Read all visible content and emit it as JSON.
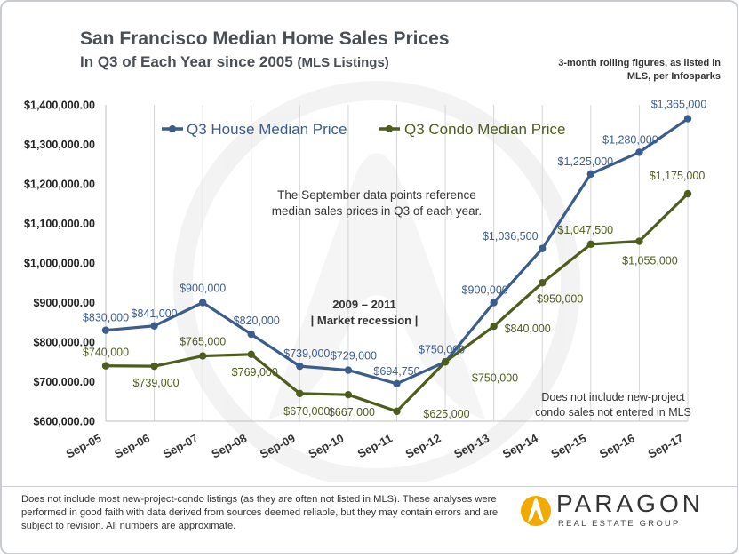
{
  "header": {
    "title": "San Francisco Median Home Sales Prices",
    "subtitle_main": "In Q3 of Each Year since 2005",
    "subtitle_paren": "(MLS Listings)",
    "note_top": "3-month rolling figures, as listed in MLS, per Infosparks"
  },
  "chart_data": {
    "type": "line",
    "categories": [
      "Sep-05",
      "Sep-06",
      "Sep-07",
      "Sep-08",
      "Sep-09",
      "Sep-10",
      "Sep-11",
      "Sep-12",
      "Sep-13",
      "Sep-14",
      "Sep-15",
      "Sep-16",
      "Sep-17"
    ],
    "series": [
      {
        "name": "Q3 House Median Price",
        "color": "#3a5d8c",
        "values": [
          830000,
          841000,
          900000,
          820000,
          739000,
          729000,
          694750,
          750000,
          900000,
          1036500,
          1225000,
          1280000,
          1365000
        ],
        "labels": [
          "$830,000",
          "$841,000",
          "$900,000",
          "$820,000",
          "$739,000",
          "$729,000",
          "$694,750",
          "$750,000",
          "$900,000",
          "$1,036,500",
          "$1,225,000",
          "$1,280,000",
          "$1,365,000"
        ]
      },
      {
        "name": "Q3 Condo Median Price",
        "color": "#4e5d1e",
        "values": [
          740000,
          739000,
          765000,
          769000,
          670000,
          667000,
          625000,
          750000,
          840000,
          950000,
          1047500,
          1055000,
          1175000
        ],
        "labels": [
          "$740,000",
          "$739,000",
          "$765,000",
          "$769,000",
          "$670,000",
          "$667,000",
          "$625,000",
          "$750,000",
          "$840,000",
          "$950,000",
          "$1,047,500",
          "$1,055,000",
          "$1,175,000"
        ]
      }
    ],
    "ylim": [
      600000,
      1400000
    ],
    "yticks": [
      600000,
      700000,
      800000,
      900000,
      1000000,
      1100000,
      1200000,
      1300000,
      1400000
    ],
    "ytick_labels": [
      "$600,000.00",
      "$700,000.00",
      "$800,000.00",
      "$900,000.00",
      "$1,000,000.00",
      "$1,100,000.00",
      "$1,200,000.00",
      "$1,300,000.00",
      "$1,400,000.00"
    ],
    "grid": "vertical",
    "annotations": {
      "center_line1": "The September data points reference",
      "center_line2": "median sales prices in Q3 of each year.",
      "recession_line1": "2009 – 2011",
      "recession_line2": "| Market recession |",
      "condo_note_line1": "Does not include new-project",
      "condo_note_line2": "condo sales not entered in MLS"
    }
  },
  "footer": {
    "disclaimer": "Does not include most new-project-condo listings (as they are often not listed in MLS). These analyses were performed in good faith with data derived from sources deemed reliable, but they may contain errors and are subject to revision. All numbers are approximate.",
    "logo_name": "PARAGON",
    "logo_sub": "REAL ESTATE GROUP",
    "logo_color": "#f2a900"
  }
}
